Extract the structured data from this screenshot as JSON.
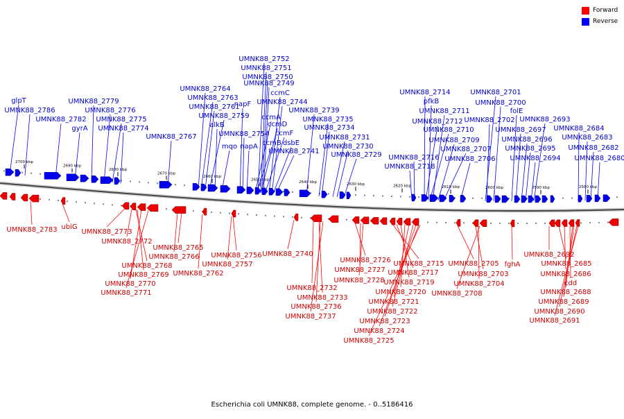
{
  "legend": [
    {
      "label": "Forward",
      "color": "#ff0000"
    },
    {
      "label": "Reverse",
      "color": "#0000ff"
    }
  ],
  "caption": "Escherichia coli UMNK88, complete genome. - 0..5186416",
  "ticks": [
    "2700 kbp",
    "2690 kbp",
    "2680 kbp",
    "2670 kbp",
    "2660 kbp",
    "2650 kbp",
    "2640 kbp",
    "2630 kbp",
    "2620 kbp",
    "2610 kbp",
    "2600 kbp",
    "2590 kbp",
    "2580 kbp"
  ],
  "reverse_labels": [
    "glpT",
    "UMNK88_2786",
    "UMNK88_2782",
    "gyrA",
    "UMNK88_2779",
    "UMNK88_2776",
    "UMNK88_2775",
    "UMNK88_2774",
    "UMNK88_2767",
    "UMNK88_2764",
    "UMNK88_2763",
    "UMNK88_2761",
    "UMNK88_2759",
    "alkB",
    "napF",
    "UMNK88_2754",
    "mqo",
    "napA",
    "UMNK88_2752",
    "UMNK88_2751",
    "UMNK88_2750",
    "UMNK88_2749",
    "ccmC",
    "UMNK88_2744",
    "ccmA",
    "ccmD",
    "ccmF",
    "ccmB",
    "dsbE",
    "UMNK88_2741",
    "UMNK88_2739",
    "UMNK88_2735",
    "UMNK88_2734",
    "UMNK88_2731",
    "UMNK88_2730",
    "UMNK88_2729",
    "UMNK88_2714",
    "pfkB",
    "UMNK88_2711",
    "UMNK88_2712",
    "UMNK88_2710",
    "UMNK88_2709",
    "UMNK88_2707",
    "UMNK88_2716",
    "UMNK88_2718",
    "UMNK88_2706",
    "UMNK88_2701",
    "UMNK88_2700",
    "folE",
    "UMNK88_2702",
    "UMNK88_2697",
    "UMNK88_2693",
    "UMNK88_2696",
    "UMNK88_2695",
    "UMNK88_2694",
    "UMNK88_2684",
    "UMNK88_2683",
    "UMNK88_2682",
    "UMNK88_2680"
  ],
  "forward_labels": [
    "UMNK88_2783",
    "ubiG",
    "UMNK88_2773",
    "UMNK88_2772",
    "UMNK88_2768",
    "UMNK88_2769",
    "UMNK88_2770",
    "UMNK88_2771",
    "UMNK88_2765",
    "UMNK88_2766",
    "UMNK88_2762",
    "UMNK88_2756",
    "UMNK88_2757",
    "UMNK88_2740",
    "UMNK88_2732",
    "UMNK88_2733",
    "UMNK88_2736",
    "UMNK88_2737",
    "UMNK88_2726",
    "UMNK88_2727",
    "UMNK88_2728",
    "UMNK88_2715",
    "UMNK88_2717",
    "UMNK88_2719",
    "UMNK88_2720",
    "UMNK88_2721",
    "UMNK88_2722",
    "UMNK88_2723",
    "UMNK88_2724",
    "UMNK88_2725",
    "UMNK88_2705",
    "UMNK88_2703",
    "UMNK88_2704",
    "UMNK88_2708",
    "fghA",
    "UMNK88_2692",
    "UMNK88_2685",
    "UMNK88_2686",
    "cdd",
    "UMNK88_2688",
    "UMNK88_2689",
    "UMNK88_2690",
    "UMNK88_2691"
  ]
}
